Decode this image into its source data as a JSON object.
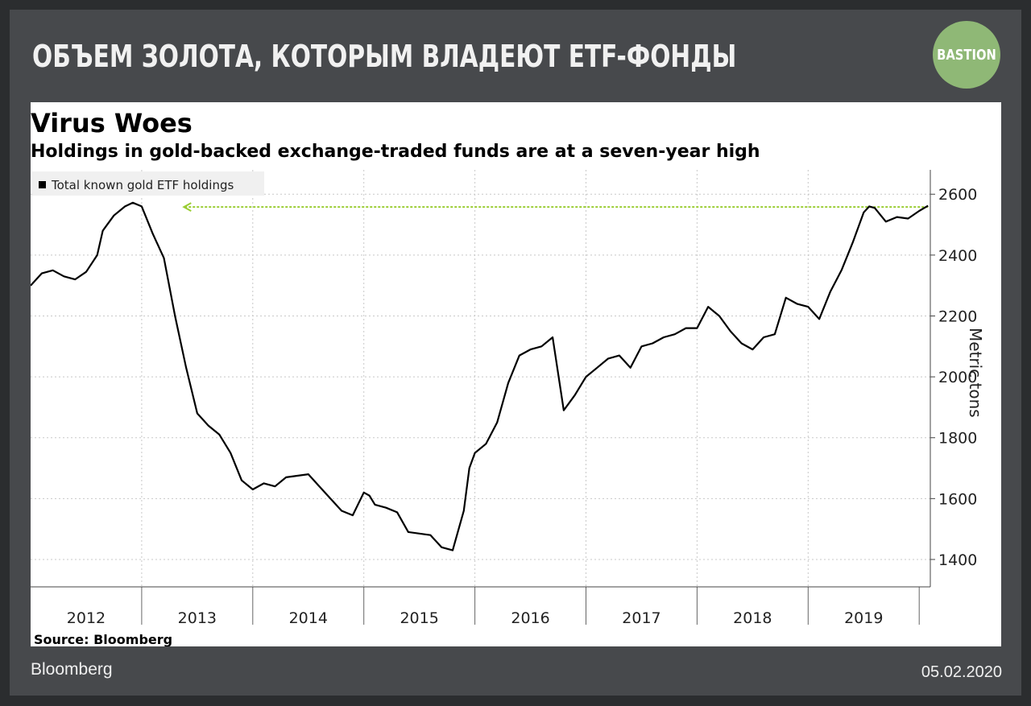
{
  "header": {
    "title": "ОБЪЕМ ЗОЛОТА, КОТОРЫМ ВЛАДЕЮТ ETF-ФОНДЫ",
    "brand_logo_text": "BASTION"
  },
  "footer": {
    "source": "Bloomberg",
    "date": "05.02.2020"
  },
  "colors": {
    "background": "#47494c",
    "brand": "#8fb876",
    "line": "#000000",
    "arrow": "#9acd32"
  },
  "chart_data": {
    "type": "line",
    "title": "Virus Woes",
    "subtitle": "Holdings in gold-backed exchange-traded funds are at a seven-year high",
    "ylabel": "Metric tons",
    "source_note": "Source: Bloomberg",
    "legend": {
      "label": "Total known gold ETF holdings",
      "placement": "top-left"
    },
    "x_ticks": [
      "2012",
      "2013",
      "2014",
      "2015",
      "2016",
      "2017",
      "2018",
      "2019"
    ],
    "xlim": [
      2012.0,
      2020.1
    ],
    "y_ticks": [
      1400,
      1600,
      1800,
      2000,
      2200,
      2400,
      2600
    ],
    "ylim": [
      1310,
      2680
    ],
    "grid": true,
    "annotation": {
      "type": "arrow",
      "from_x": 2020.08,
      "to_x": 2013.38,
      "y": 2558
    },
    "series": [
      {
        "name": "Total known gold ETF holdings",
        "x": [
          2012.0,
          2012.1,
          2012.2,
          2012.3,
          2012.4,
          2012.5,
          2012.6,
          2012.65,
          2012.75,
          2012.85,
          2012.92,
          2013.0,
          2013.1,
          2013.2,
          2013.3,
          2013.4,
          2013.5,
          2013.6,
          2013.7,
          2013.8,
          2013.9,
          2014.0,
          2014.1,
          2014.2,
          2014.3,
          2014.4,
          2014.5,
          2014.6,
          2014.7,
          2014.8,
          2014.9,
          2015.0,
          2015.05,
          2015.1,
          2015.2,
          2015.3,
          2015.4,
          2015.5,
          2015.6,
          2015.7,
          2015.8,
          2015.9,
          2015.95,
          2016.0,
          2016.1,
          2016.2,
          2016.3,
          2016.4,
          2016.5,
          2016.6,
          2016.7,
          2016.8,
          2016.9,
          2017.0,
          2017.1,
          2017.2,
          2017.3,
          2017.4,
          2017.5,
          2017.6,
          2017.7,
          2017.8,
          2017.9,
          2018.0,
          2018.1,
          2018.2,
          2018.3,
          2018.4,
          2018.5,
          2018.6,
          2018.7,
          2018.8,
          2018.9,
          2019.0,
          2019.1,
          2019.2,
          2019.3,
          2019.4,
          2019.5,
          2019.55,
          2019.6,
          2019.7,
          2019.8,
          2019.9,
          2020.0,
          2020.08
        ],
        "values": [
          2300,
          2340,
          2350,
          2330,
          2320,
          2345,
          2400,
          2480,
          2530,
          2560,
          2572,
          2560,
          2470,
          2390,
          2200,
          2030,
          1880,
          1840,
          1810,
          1750,
          1660,
          1630,
          1650,
          1640,
          1670,
          1675,
          1680,
          1640,
          1600,
          1560,
          1545,
          1620,
          1610,
          1580,
          1570,
          1555,
          1490,
          1485,
          1480,
          1440,
          1430,
          1560,
          1700,
          1750,
          1780,
          1850,
          1980,
          2070,
          2090,
          2100,
          2130,
          1890,
          1940,
          2000,
          2030,
          2060,
          2070,
          2030,
          2100,
          2110,
          2130,
          2140,
          2160,
          2160,
          2230,
          2200,
          2150,
          2110,
          2090,
          2130,
          2140,
          2260,
          2240,
          2230,
          2190,
          2280,
          2350,
          2440,
          2540,
          2560,
          2555,
          2510,
          2525,
          2520,
          2545,
          2562
        ]
      }
    ]
  }
}
